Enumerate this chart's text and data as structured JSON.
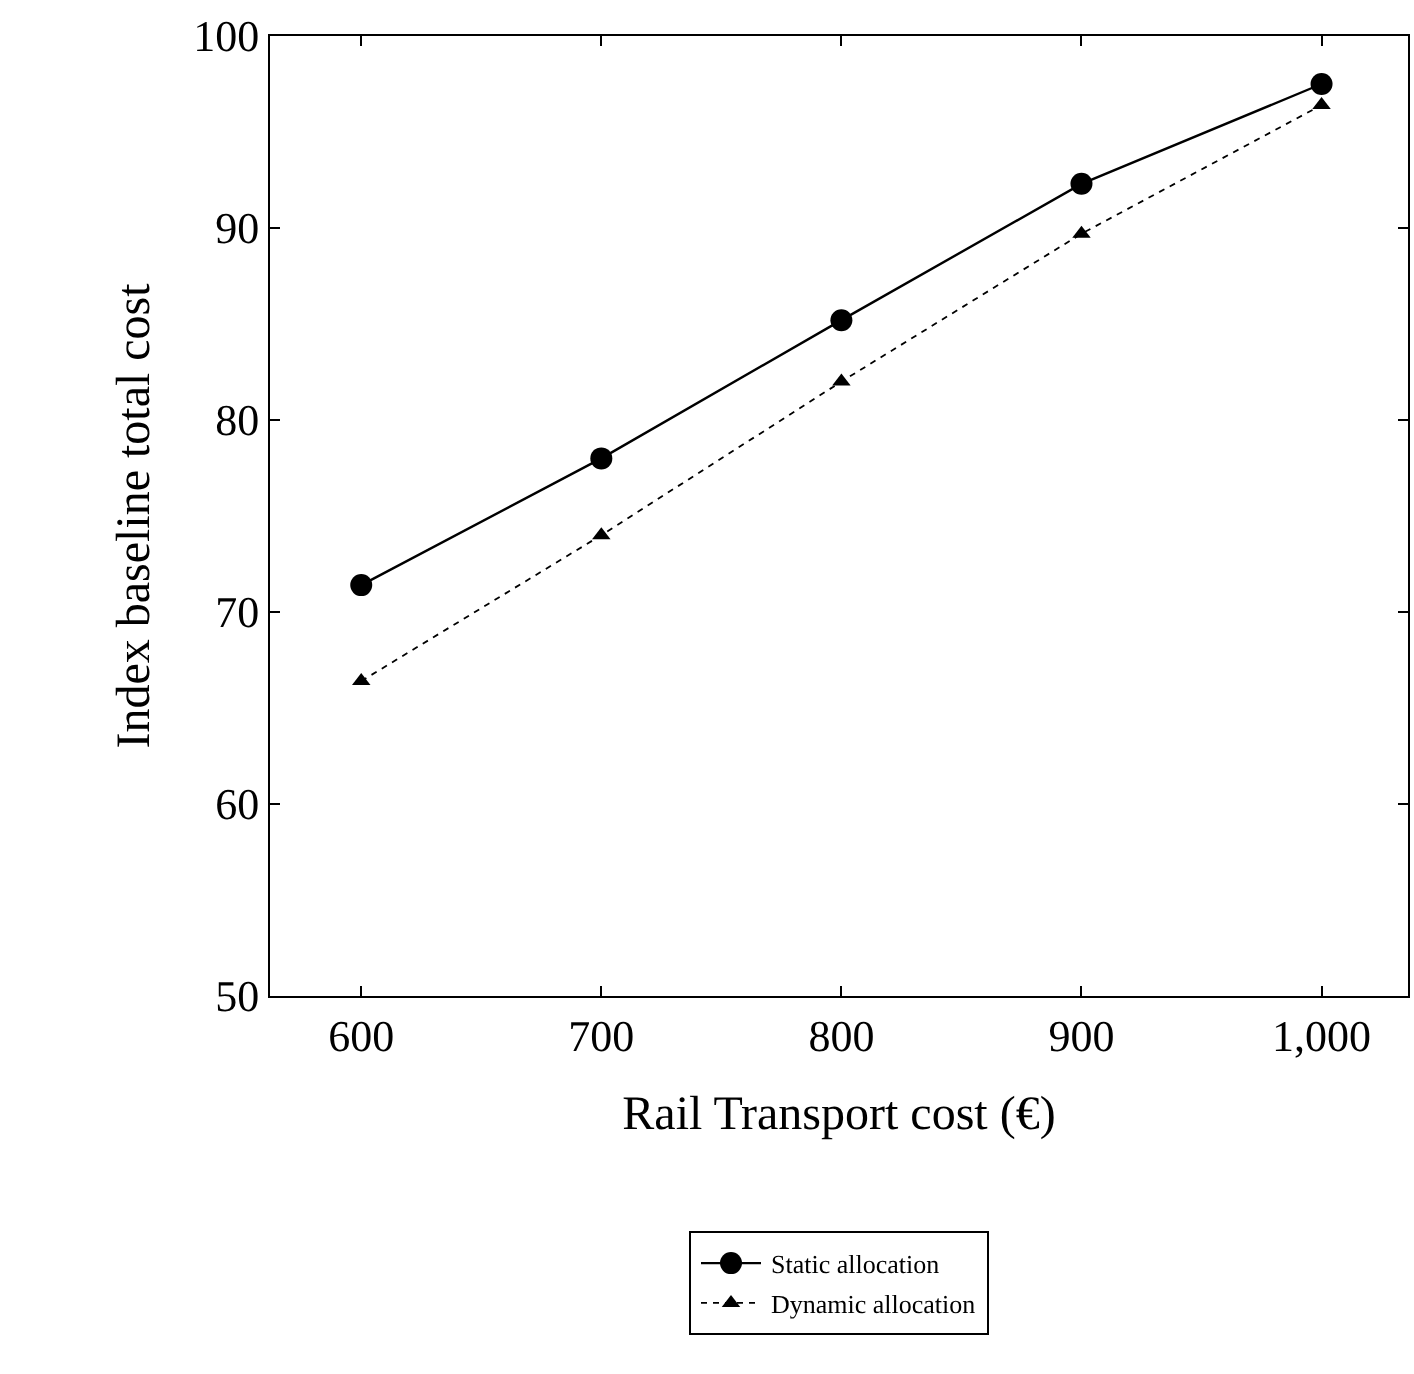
{
  "chart_data": {
    "type": "line",
    "xlabel": "Rail Transport cost (€)",
    "ylabel": "Index baseline total cost",
    "x": [
      600,
      700,
      800,
      900,
      1000
    ],
    "series": [
      {
        "name": "Static allocation",
        "color": "#000000",
        "marker": "circle",
        "line_style": "solid",
        "values": [
          71.4,
          78.0,
          85.2,
          92.3,
          97.5
        ]
      },
      {
        "name": "Dynamic allocation",
        "color": "#000000",
        "marker": "triangle",
        "line_style": "dotted",
        "values": [
          66.4,
          74.0,
          82.0,
          89.7,
          96.4
        ]
      }
    ],
    "xlim": [
      562,
      1036
    ],
    "ylim": [
      50,
      100
    ],
    "xticks": [
      600,
      700,
      800,
      900,
      {
        "value": 1000,
        "label": "1,000"
      }
    ],
    "yticks": [
      50,
      60,
      70,
      80,
      90,
      100
    ],
    "grid": false,
    "legend": "bottom"
  }
}
